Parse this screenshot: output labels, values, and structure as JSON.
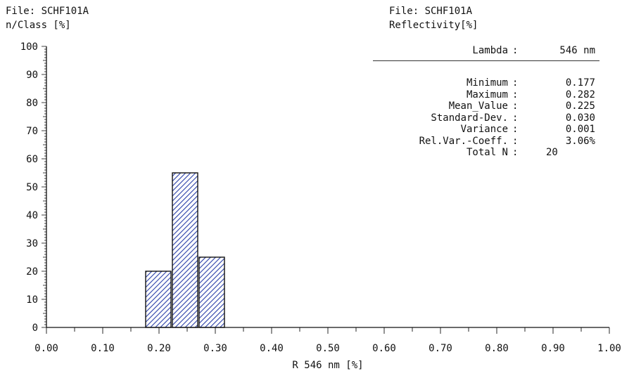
{
  "header": {
    "left_file": "File: SCHF101A",
    "left_ylabel": "n/Class [%]",
    "right_file": "File: SCHF101A",
    "right_title": "Reflectivity[%]"
  },
  "stats": {
    "lambda": {
      "label": "Lambda",
      "value": "546 nm"
    },
    "rows": [
      {
        "label": "Minimum",
        "value": "0.177"
      },
      {
        "label": "Maximum",
        "value": "0.282"
      },
      {
        "label": "Mean_Value",
        "value": "0.225"
      },
      {
        "label": "Standard-Dev.",
        "value": "0.030"
      },
      {
        "label": "Variance",
        "value": "0.001"
      },
      {
        "label": "Rel.Var.-Coeff.",
        "value": "3.06%"
      },
      {
        "label": "Total N",
        "value": "20"
      }
    ]
  },
  "chart_data": {
    "type": "bar",
    "title": "",
    "xlabel": "R 546 nm [%]",
    "ylabel": "n/Class [%]",
    "xlim": [
      0.0,
      1.0
    ],
    "ylim": [
      0,
      100
    ],
    "x_ticks": [
      "0.00",
      "0.10",
      "0.20",
      "0.30",
      "0.40",
      "0.50",
      "0.60",
      "0.70",
      "0.80",
      "0.90",
      "1.00"
    ],
    "y_ticks": [
      "0",
      "10",
      "20",
      "30",
      "40",
      "50",
      "60",
      "70",
      "80",
      "90",
      "100"
    ],
    "bins": [
      {
        "x0": 0.175,
        "x1": 0.2225,
        "value": 20
      },
      {
        "x0": 0.2225,
        "x1": 0.27,
        "value": 55
      },
      {
        "x0": 0.27,
        "x1": 0.3175,
        "value": 25
      }
    ],
    "bar_fill": "#2a3fa8",
    "grid": false
  }
}
